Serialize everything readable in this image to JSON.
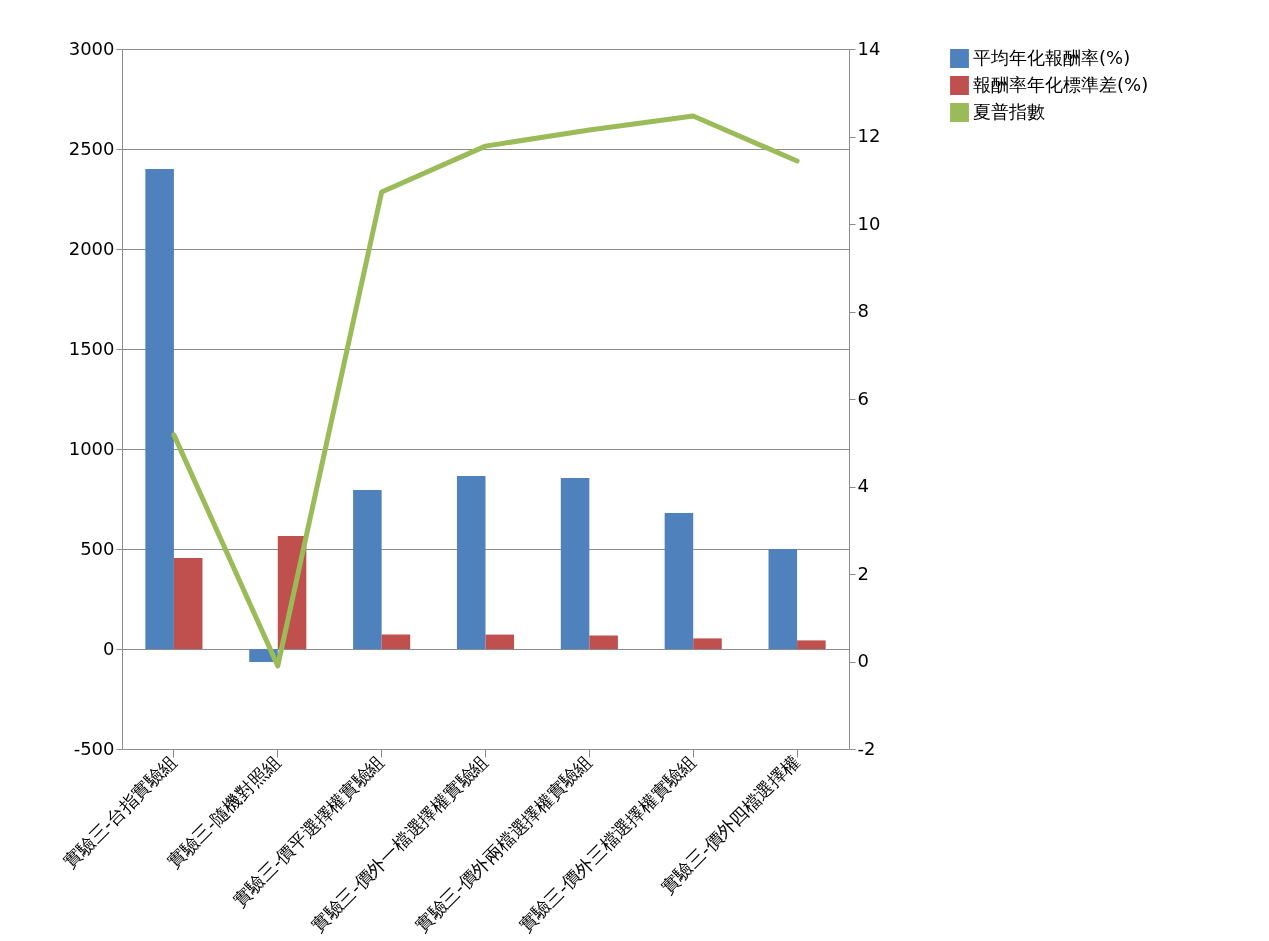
{
  "chart_data": {
    "type": "bar",
    "categories": [
      "實驗三-台指實驗組",
      "實驗三-隨機對照組",
      "實驗三-價平選擇權實驗組",
      "實驗三-價外一檔選擇權實驗組",
      "實驗三-價外兩檔選擇權實驗組",
      "實驗三-價外三檔選擇權實驗組",
      "實驗三-價外四檔選擇權"
    ],
    "series": [
      {
        "name": "平均年化報酬率(%)",
        "color": "#4f81bd",
        "values": [
          2400,
          -65,
          795,
          865,
          855,
          680,
          500
        ]
      },
      {
        "name": "報酬率年化標準差(%)",
        "color": "#c0504d",
        "values": [
          455,
          565,
          72,
          72,
          68,
          53,
          43
        ]
      },
      {
        "name": "夏普指數",
        "color": "#9bbb59",
        "type": "line",
        "axis": "y2",
        "values": [
          5.18,
          -0.1,
          10.73,
          11.78,
          12.15,
          12.47,
          11.44
        ]
      }
    ],
    "ylim": [
      -500,
      3000
    ],
    "yticks": [
      -500,
      0,
      500,
      1000,
      1500,
      2000,
      2500,
      3000
    ],
    "y2lim": [
      -2,
      14
    ],
    "y2ticks": [
      -2,
      0,
      2,
      4,
      6,
      8,
      10,
      12,
      14
    ],
    "grid": true,
    "legend": "right",
    "marker": "none",
    "line_style": "solid"
  }
}
